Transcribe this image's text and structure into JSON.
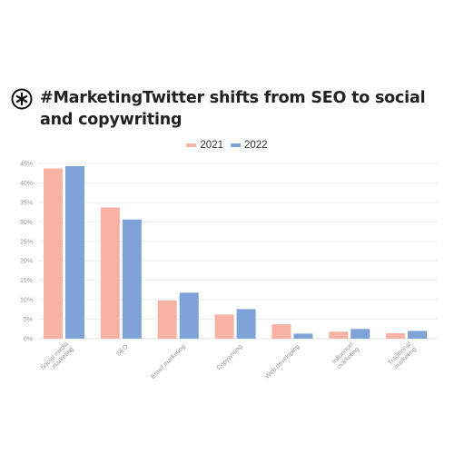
{
  "title": "#MarketingTwitter shifts from SEO to social and copywriting",
  "logo_icon": "star-burst-logo-icon",
  "colors": {
    "series_2021": "#f7b2a3",
    "series_2022": "#7ea3d9",
    "grid": "#eeeeee",
    "axis_text": "#9a9a9a"
  },
  "chart_data": {
    "type": "bar",
    "categories": [
      [
        "Social media",
        "marketing"
      ],
      [
        "SEO"
      ],
      [
        "Email marketing"
      ],
      [
        "Copywriting"
      ],
      [
        "Web developing"
      ],
      [
        "Influencer",
        "marketing"
      ],
      [
        "Traditional",
        "marketing"
      ]
    ],
    "series": [
      {
        "name": "2021",
        "color": "#f7b2a3",
        "values": [
          43.7,
          33.7,
          9.8,
          6.2,
          3.7,
          1.8,
          1.4
        ]
      },
      {
        "name": "2022",
        "color": "#7ea3d9",
        "values": [
          44.3,
          30.6,
          11.8,
          7.6,
          1.3,
          2.5,
          2.0
        ]
      }
    ],
    "yticks": [
      "0%",
      "5%",
      "10%",
      "15%",
      "20%",
      "25%",
      "30%",
      "35%",
      "40%",
      "45%"
    ],
    "ylim": [
      0,
      45
    ],
    "legend_position": "top-center",
    "grid": true
  }
}
